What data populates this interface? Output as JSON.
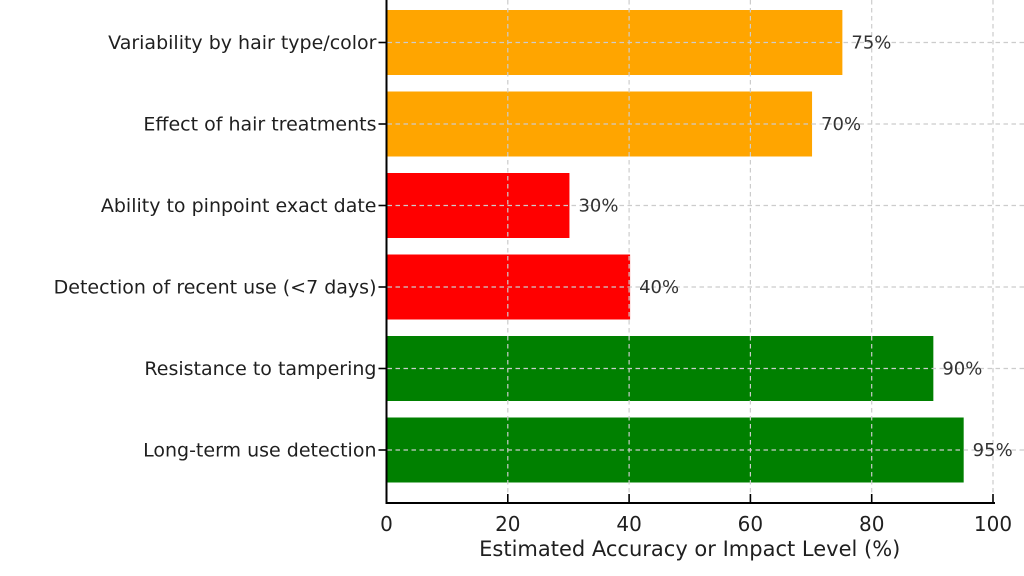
{
  "chart_data": {
    "type": "bar",
    "orientation": "horizontal",
    "title": "",
    "xlabel": "Estimated Accuracy or Impact Level (%)",
    "ylabel": "",
    "categories": [
      "Variability by hair type/color",
      "Effect of hair treatments",
      "Ability to pinpoint exact date",
      "Detection of recent use (<7 days)",
      "Resistance to tampering",
      "Long-term use detection"
    ],
    "values": [
      75,
      70,
      30,
      40,
      90,
      95
    ],
    "value_labels": [
      "75%",
      "70%",
      "30%",
      "40%",
      "90%",
      "95%"
    ],
    "bar_colors": [
      "#FFA500",
      "#FFA500",
      "#FF0000",
      "#FF0000",
      "#008000",
      "#008000"
    ],
    "x_ticks": [
      0,
      20,
      40,
      60,
      80,
      100
    ],
    "x_tick_labels": [
      "0",
      "20",
      "40",
      "60",
      "80",
      "100"
    ],
    "xlim": [
      0,
      100
    ],
    "grid": true,
    "legend": false
  },
  "style": {
    "background": "#ffffff",
    "grid_color": "#cccccc",
    "axis_color": "#000000",
    "tick_label_color": "#1f1f1f",
    "category_label_color": "#1f1f1f",
    "value_label_color": "#333333",
    "xlabel_color": "#1f1f1f"
  }
}
